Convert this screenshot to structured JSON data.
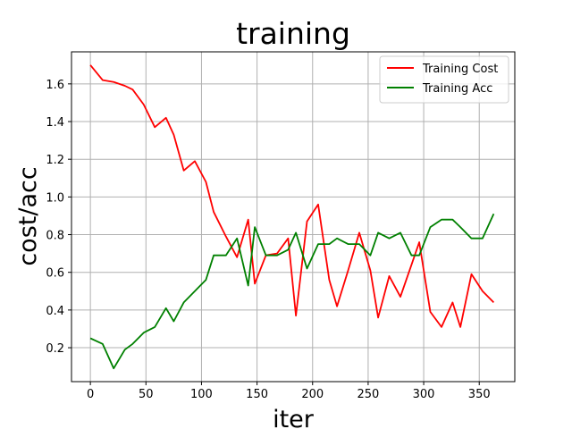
{
  "chart_data": {
    "type": "line",
    "title": "training",
    "xlabel": "iter",
    "ylabel": "cost/acc",
    "xlim": [
      -17,
      382
    ],
    "ylim": [
      0.02,
      1.77
    ],
    "xticks": [
      0,
      50,
      100,
      150,
      200,
      250,
      300,
      350
    ],
    "yticks": [
      0.2,
      0.4,
      0.6,
      0.8,
      1.0,
      1.2,
      1.4,
      1.6
    ],
    "grid": true,
    "legend_position": "top-right",
    "series": [
      {
        "name": "Training Cost",
        "color": "#ff0000",
        "points": [
          [
            0,
            1.7
          ],
          [
            11,
            1.62
          ],
          [
            21,
            1.61
          ],
          [
            31,
            1.59
          ],
          [
            38,
            1.57
          ],
          [
            48,
            1.49
          ],
          [
            58,
            1.37
          ],
          [
            68,
            1.42
          ],
          [
            75,
            1.33
          ],
          [
            84,
            1.14
          ],
          [
            94,
            1.19
          ],
          [
            104,
            1.08
          ],
          [
            111,
            0.92
          ],
          [
            122,
            0.79
          ],
          [
            132,
            0.68
          ],
          [
            142,
            0.88
          ],
          [
            148,
            0.54
          ],
          [
            158,
            0.69
          ],
          [
            168,
            0.7
          ],
          [
            178,
            0.78
          ],
          [
            185,
            0.37
          ],
          [
            195,
            0.87
          ],
          [
            205,
            0.96
          ],
          [
            215,
            0.56
          ],
          [
            222,
            0.42
          ],
          [
            232,
            0.61
          ],
          [
            242,
            0.81
          ],
          [
            252,
            0.61
          ],
          [
            259,
            0.36
          ],
          [
            269,
            0.58
          ],
          [
            279,
            0.47
          ],
          [
            289,
            0.64
          ],
          [
            296,
            0.76
          ],
          [
            306,
            0.39
          ],
          [
            316,
            0.31
          ],
          [
            326,
            0.44
          ],
          [
            333,
            0.31
          ],
          [
            343,
            0.59
          ],
          [
            353,
            0.5
          ],
          [
            363,
            0.44
          ]
        ]
      },
      {
        "name": "Training Acc",
        "color": "#008000",
        "points": [
          [
            0,
            0.25
          ],
          [
            11,
            0.22
          ],
          [
            21,
            0.09
          ],
          [
            31,
            0.19
          ],
          [
            38,
            0.22
          ],
          [
            48,
            0.28
          ],
          [
            58,
            0.31
          ],
          [
            68,
            0.41
          ],
          [
            75,
            0.34
          ],
          [
            84,
            0.44
          ],
          [
            94,
            0.5
          ],
          [
            104,
            0.56
          ],
          [
            111,
            0.69
          ],
          [
            122,
            0.69
          ],
          [
            132,
            0.78
          ],
          [
            142,
            0.53
          ],
          [
            148,
            0.84
          ],
          [
            158,
            0.69
          ],
          [
            168,
            0.69
          ],
          [
            178,
            0.72
          ],
          [
            185,
            0.81
          ],
          [
            195,
            0.62
          ],
          [
            205,
            0.75
          ],
          [
            215,
            0.75
          ],
          [
            222,
            0.78
          ],
          [
            232,
            0.75
          ],
          [
            242,
            0.75
          ],
          [
            252,
            0.69
          ],
          [
            259,
            0.81
          ],
          [
            269,
            0.78
          ],
          [
            279,
            0.81
          ],
          [
            289,
            0.69
          ],
          [
            296,
            0.69
          ],
          [
            306,
            0.84
          ],
          [
            316,
            0.88
          ],
          [
            326,
            0.88
          ],
          [
            333,
            0.84
          ],
          [
            343,
            0.78
          ],
          [
            353,
            0.78
          ],
          [
            363,
            0.91
          ]
        ]
      }
    ]
  }
}
